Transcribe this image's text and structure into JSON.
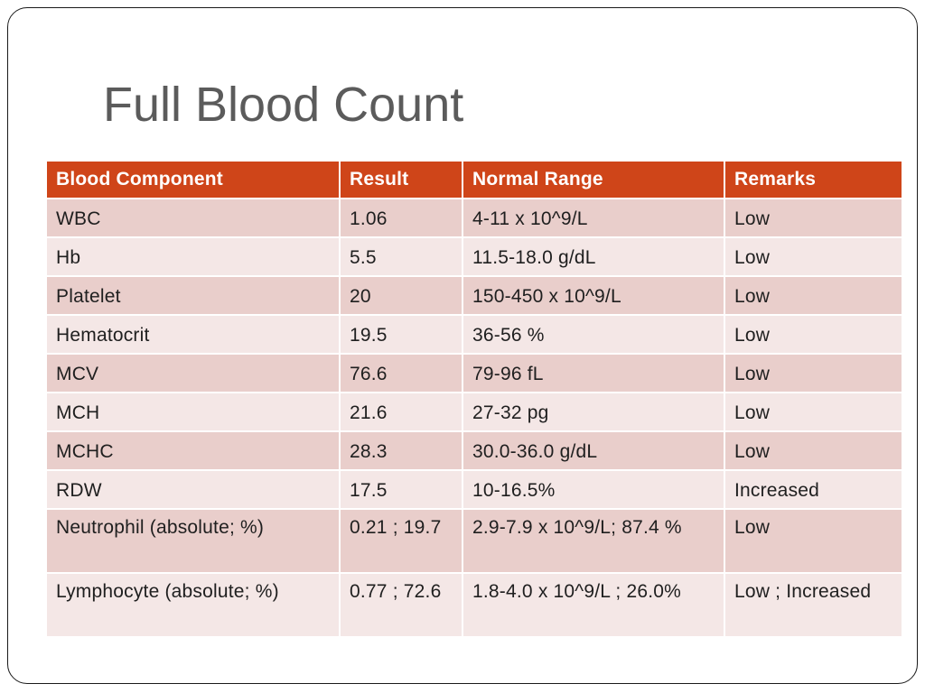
{
  "slide": {
    "title": "Full Blood Count"
  },
  "table": {
    "headers": [
      "Blood Component",
      "Result",
      "Normal Range",
      "Remarks"
    ],
    "rows": [
      [
        "WBC",
        "1.06",
        "4-11 x 10^9/L",
        "Low"
      ],
      [
        "Hb",
        "5.5",
        "11.5-18.0 g/dL",
        "Low"
      ],
      [
        "Platelet",
        "20",
        "150-450 x 10^9/L",
        "Low"
      ],
      [
        "Hematocrit",
        "19.5",
        "36-56 %",
        "Low"
      ],
      [
        "MCV",
        "76.6",
        "79-96 fL",
        "Low"
      ],
      [
        "MCH",
        "21.6",
        "27-32 pg",
        "Low"
      ],
      [
        "MCHC",
        "28.3",
        "30.0-36.0 g/dL",
        "Low"
      ],
      [
        "RDW",
        "17.5",
        "10-16.5%",
        "Increased"
      ],
      [
        "Neutrophil (absolute; %)",
        "0.21 ; 19.7",
        "2.9-7.9 x 10^9/L; 87.4 %",
        "Low"
      ],
      [
        "Lymphocyte (absolute; %)",
        "0.77 ; 72.6",
        "1.8-4.0 x 10^9/L ; 26.0%",
        "Low ; Increased"
      ]
    ]
  },
  "colors": {
    "header_bg": "#cf4519",
    "row_dark": "#e9cecb",
    "row_light": "#f4e7e6",
    "title_text": "#5b5b5b"
  }
}
